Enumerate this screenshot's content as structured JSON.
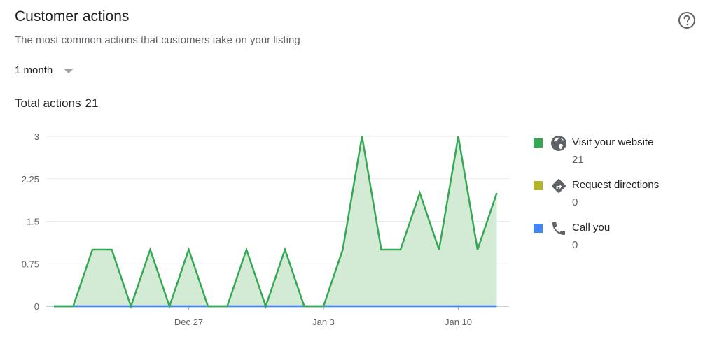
{
  "header": {
    "title": "Customer actions",
    "subtitle": "The most common actions that customers take on your listing"
  },
  "period": {
    "selected": "1 month"
  },
  "total": {
    "label": "Total actions",
    "value": "21"
  },
  "legend": [
    {
      "label": "Visit your website",
      "count": "21",
      "color": "#34a853",
      "icon": "globe-icon"
    },
    {
      "label": "Request directions",
      "count": "0",
      "color": "#afb42b",
      "icon": "directions-icon"
    },
    {
      "label": "Call you",
      "count": "0",
      "color": "#4285f4",
      "icon": "phone-icon"
    }
  ],
  "chart_data": {
    "type": "area",
    "x_ticks": [
      "Dec 27",
      "Jan 3",
      "Jan 10"
    ],
    "y_ticks": [
      "3",
      "2.25",
      "1.5",
      "0.75",
      "0"
    ],
    "ylim": [
      0,
      3
    ],
    "x": [
      "Dec 20",
      "Dec 21",
      "Dec 22",
      "Dec 23",
      "Dec 24",
      "Dec 25",
      "Dec 26",
      "Dec 27",
      "Dec 28",
      "Dec 29",
      "Dec 30",
      "Dec 31",
      "Jan 1",
      "Jan 2",
      "Jan 3",
      "Jan 4",
      "Jan 5",
      "Jan 6",
      "Jan 7",
      "Jan 8",
      "Jan 9",
      "Jan 10",
      "Jan 11",
      "Jan 12",
      "Jan 13"
    ],
    "series": [
      {
        "name": "Visit your website",
        "color": "#34a853",
        "fill": "#d3ebd5",
        "values": [
          0,
          0,
          1,
          1,
          0,
          1,
          0,
          1,
          0,
          0,
          1,
          0,
          1,
          0,
          0,
          1,
          3,
          1,
          1,
          2,
          1,
          3,
          1,
          2,
          null
        ]
      },
      {
        "name": "Request directions",
        "color": "#afb42b",
        "values": [
          0,
          0,
          0,
          0,
          0,
          0,
          0,
          0,
          0,
          0,
          0,
          0,
          0,
          0,
          0,
          0,
          0,
          0,
          0,
          0,
          0,
          0,
          0,
          0,
          null
        ]
      },
      {
        "name": "Call you",
        "color": "#4285f4",
        "values": [
          0,
          0,
          0,
          0,
          0,
          0,
          0,
          0,
          0,
          0,
          0,
          0,
          0,
          0,
          0,
          0,
          0,
          0,
          0,
          0,
          0,
          0,
          0,
          0,
          null
        ]
      }
    ],
    "grid": true,
    "legend_position": "right"
  }
}
